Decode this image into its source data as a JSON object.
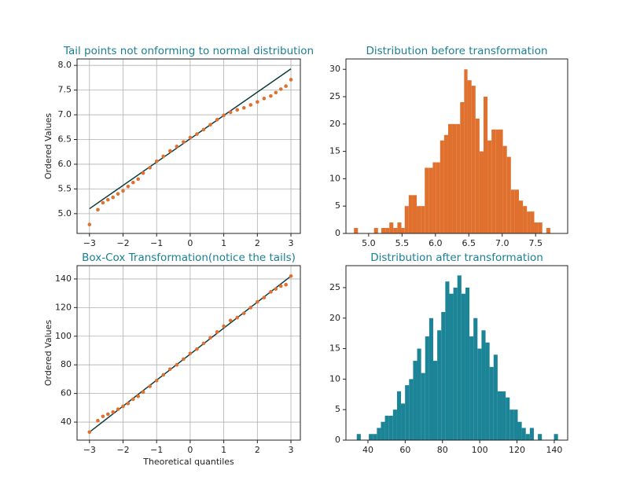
{
  "chart_data": [
    {
      "type": "scatter",
      "title": "Tail points not onforming to normal distribution",
      "ylabel": "Ordered Values",
      "x": [
        -3,
        -2.75,
        -2.6,
        -2.45,
        -2.3,
        -2.15,
        -2,
        -1.85,
        -1.7,
        -1.55,
        -1.4,
        -1.2,
        -1,
        -0.8,
        -0.6,
        -0.4,
        -0.2,
        0,
        0.2,
        0.4,
        0.6,
        0.8,
        1,
        1.2,
        1.4,
        1.6,
        1.8,
        2,
        2.2,
        2.4,
        2.55,
        2.7,
        2.85,
        3
      ],
      "values": [
        4.78,
        5.08,
        5.22,
        5.28,
        5.33,
        5.4,
        5.46,
        5.55,
        5.63,
        5.7,
        5.82,
        5.93,
        6.06,
        6.16,
        6.27,
        6.36,
        6.45,
        6.54,
        6.61,
        6.7,
        6.8,
        6.9,
        6.99,
        7.05,
        7.1,
        7.14,
        7.2,
        7.26,
        7.33,
        7.38,
        7.45,
        7.52,
        7.58,
        7.71
      ],
      "color": "#e0702e",
      "line": {
        "x": [
          -3,
          3
        ],
        "values": [
          5.1,
          7.93
        ],
        "color": "#0d3b3b"
      },
      "xlim": [
        -3.37,
        3.28
      ],
      "ylim": [
        4.6,
        8.13
      ],
      "xticks": [
        {
          "value": -3,
          "label": "−3"
        },
        {
          "value": -2,
          "label": "−2"
        },
        {
          "value": -1,
          "label": "−1"
        },
        0,
        1,
        2,
        3
      ],
      "yticks": [
        {
          "value": 5,
          "label": "5.0"
        },
        5.5,
        {
          "value": 6,
          "label": "6.0"
        },
        6.5,
        {
          "value": 7,
          "label": "7.0"
        },
        7.5,
        {
          "value": 8,
          "label": "8.0"
        }
      ],
      "grid": true
    },
    {
      "type": "histogram",
      "title": "Distribution before transformation",
      "bins": [
        4.78,
        4.84,
        4.9,
        4.96,
        5.02,
        5.08,
        5.14,
        5.19,
        5.25,
        5.31,
        5.37,
        5.43,
        5.49,
        5.54,
        5.6,
        5.66,
        5.72,
        5.78,
        5.84,
        5.9,
        5.96,
        6.01,
        6.07,
        6.13,
        6.19,
        6.25,
        6.31,
        6.37,
        6.43,
        6.48,
        6.54,
        6.6,
        6.66,
        6.72,
        6.78,
        6.84,
        6.9,
        6.95,
        7.01,
        7.07,
        7.13,
        7.19,
        7.25,
        7.31,
        7.37,
        7.42,
        7.48,
        7.54,
        7.6,
        7.66,
        7.72
      ],
      "values": [
        1,
        0,
        0,
        0,
        0,
        1,
        0,
        1,
        1,
        2,
        1,
        2,
        1,
        5,
        7,
        7,
        5,
        5,
        12,
        12,
        13,
        13,
        17,
        18,
        20,
        20,
        20,
        24,
        30,
        28,
        27,
        21,
        15,
        25,
        17,
        19,
        19,
        19,
        16,
        14,
        8,
        8,
        6,
        5,
        4,
        4,
        2,
        2,
        0,
        1
      ],
      "color": "#e0702e",
      "xlim": [
        4.66,
        7.98
      ],
      "ylim": [
        0,
        31.9
      ],
      "xticks": [
        {
          "value": 5,
          "label": "5.0"
        },
        5.5,
        {
          "value": 6,
          "label": "6.0"
        },
        6.5,
        {
          "value": 7,
          "label": "7.0"
        },
        7.5
      ],
      "yticks": [
        0,
        5,
        10,
        15,
        20,
        25,
        30
      ],
      "grid": false
    },
    {
      "type": "scatter",
      "title": "Box-Cox Transformation(notice the tails)",
      "xlabel": "Theoretical quantiles",
      "ylabel": "Ordered Values",
      "x": [
        -3,
        -2.75,
        -2.6,
        -2.45,
        -2.3,
        -2.15,
        -2,
        -1.85,
        -1.7,
        -1.55,
        -1.4,
        -1.2,
        -1,
        -0.8,
        -0.6,
        -0.4,
        -0.2,
        0,
        0.2,
        0.4,
        0.6,
        0.8,
        1,
        1.2,
        1.4,
        1.6,
        1.8,
        2,
        2.2,
        2.4,
        2.55,
        2.7,
        2.85,
        3
      ],
      "values": [
        33,
        41,
        44,
        45.5,
        47,
        49,
        51,
        53,
        56,
        58,
        61,
        65,
        69,
        73,
        77,
        80,
        84,
        88,
        91,
        95,
        99,
        103,
        107,
        111,
        113,
        116,
        120,
        124,
        127,
        131,
        133,
        135,
        136,
        142
      ],
      "color": "#e0702e",
      "line": {
        "x": [
          -3,
          3
        ],
        "values": [
          33,
          142
        ],
        "color": "#0d3b3b"
      },
      "xlim": [
        -3.37,
        3.28
      ],
      "ylim": [
        27.4,
        149.3
      ],
      "xticks": [
        {
          "value": -3,
          "label": "−3"
        },
        {
          "value": -2,
          "label": "−2"
        },
        {
          "value": -1,
          "label": "−1"
        },
        0,
        1,
        2,
        3
      ],
      "yticks": [
        40,
        60,
        80,
        100,
        120,
        140
      ],
      "grid": true
    },
    {
      "type": "histogram",
      "title": "Distribution after transformation",
      "bins": [
        34.0,
        36.16,
        38.32,
        40.48,
        42.64,
        44.8,
        46.96,
        49.12,
        51.28,
        53.44,
        55.6,
        57.76,
        59.92,
        62.08,
        64.24,
        66.4,
        68.56,
        70.72,
        72.88,
        75.04,
        77.2,
        79.36,
        81.52,
        83.68,
        85.84,
        88.0,
        90.16,
        92.32,
        94.48,
        96.64,
        98.8,
        100.96,
        103.12,
        105.28,
        107.44,
        109.6,
        111.76,
        113.92,
        116.08,
        118.24,
        120.4,
        122.56,
        124.72,
        126.88,
        129.04,
        131.2,
        133.36,
        135.52,
        137.68,
        139.84,
        142.0
      ],
      "values": [
        1,
        0,
        0,
        1,
        1,
        2,
        3,
        4,
        4,
        5,
        8,
        6,
        9,
        10,
        13,
        15,
        11,
        17,
        20,
        13,
        18,
        21,
        26,
        24,
        25,
        27,
        24,
        25,
        17,
        20,
        15,
        18,
        16,
        12,
        14,
        8,
        8,
        7,
        5,
        5,
        3,
        2,
        1,
        2,
        0,
        1,
        0,
        0,
        0,
        1
      ],
      "color": "#1b8496",
      "xlim": [
        28.2,
        147.2
      ],
      "ylim": [
        0,
        28.6
      ],
      "xticks": [
        40,
        60,
        80,
        100,
        120,
        140
      ],
      "yticks": [
        0,
        5,
        10,
        15,
        20,
        25
      ],
      "grid": false
    }
  ]
}
